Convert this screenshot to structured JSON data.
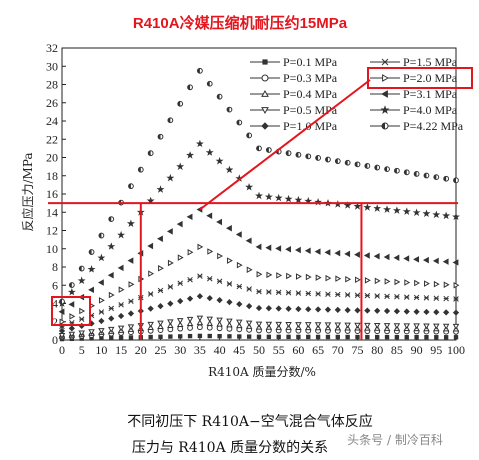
{
  "header": {
    "title": "R410A冷媒压缩机耐压约15MPa"
  },
  "caption": {
    "line1": "不同初压下 R410A−空气混合气体反应",
    "line2": "压力与 R410A 质量分数的关系"
  },
  "watermark": "头条号 / 制冷百科",
  "annotation": {
    "threshold_value": 15,
    "x_markers": [
      20,
      76
    ]
  },
  "colors": {
    "annotation": "#e3161f",
    "marker": "#333333",
    "title": "#e3161f"
  },
  "chart_data": {
    "type": "scatter",
    "title": "R410A冷媒压缩机耐压约15MPa",
    "xlabel": "R410A 质量分数/%",
    "ylabel": "反应压力/MPa",
    "xlim": [
      0,
      100
    ],
    "ylim": [
      0,
      32
    ],
    "x_ticks": [
      0,
      5,
      10,
      15,
      20,
      25,
      30,
      35,
      40,
      45,
      50,
      55,
      60,
      65,
      70,
      75,
      80,
      85,
      90,
      95,
      100
    ],
    "y_ticks": [
      0,
      2,
      4,
      6,
      8,
      10,
      12,
      14,
      16,
      18,
      20,
      22,
      24,
      26,
      28,
      30,
      32
    ],
    "legend_position": "top-right",
    "series": [
      {
        "name": "P=0.1 MPa",
        "marker": "square-filled",
        "x": [
          0,
          35,
          50,
          100
        ],
        "y": [
          0.1,
          0.45,
          0.35,
          0.3
        ]
      },
      {
        "name": "P=0.3 MPa",
        "marker": "circle-open",
        "x": [
          0,
          35,
          50,
          100
        ],
        "y": [
          0.3,
          1.4,
          1.05,
          0.9
        ]
      },
      {
        "name": "P=0.4 MPa",
        "marker": "triangle-up-open",
        "x": [
          0,
          35,
          50,
          100
        ],
        "y": [
          0.4,
          1.9,
          1.4,
          1.2
        ]
      },
      {
        "name": "P=0.5 MPa",
        "marker": "triangle-down-open",
        "x": [
          0,
          35,
          50,
          100
        ],
        "y": [
          0.5,
          2.4,
          1.75,
          1.5
        ]
      },
      {
        "name": "P=1.0 MPa",
        "marker": "diamond-filled",
        "x": [
          0,
          35,
          50,
          100
        ],
        "y": [
          1.0,
          4.8,
          3.5,
          3.0
        ]
      },
      {
        "name": "P=1.5 MPa",
        "marker": "x-cross",
        "x": [
          0,
          35,
          50,
          100
        ],
        "y": [
          1.5,
          7.0,
          5.3,
          4.5
        ]
      },
      {
        "name": "P=2.0 MPa",
        "marker": "triangle-right",
        "x": [
          0,
          35,
          50,
          100
        ],
        "y": [
          2.0,
          10.2,
          7.2,
          6.0
        ]
      },
      {
        "name": "P=3.1 MPa",
        "marker": "triangle-left",
        "x": [
          0,
          35,
          50,
          100
        ],
        "y": [
          3.1,
          14.3,
          10.2,
          8.5
        ]
      },
      {
        "name": "P=4.0 MPa",
        "marker": "star",
        "x": [
          0,
          35,
          50,
          100
        ],
        "y": [
          4.0,
          21.5,
          15.8,
          13.5
        ]
      },
      {
        "name": "P=4.22 MPa",
        "marker": "circle-half",
        "x": [
          0,
          35,
          50,
          100
        ],
        "y": [
          4.22,
          29.5,
          21.0,
          17.5
        ]
      }
    ]
  }
}
